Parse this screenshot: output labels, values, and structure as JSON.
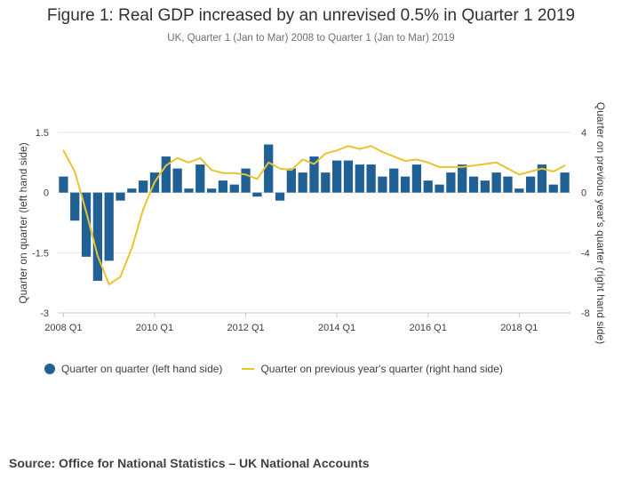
{
  "title": "Figure 1: Real GDP increased by an unrevised 0.5% in Quarter 1 2019",
  "subtitle": "UK, Quarter 1 (Jan to Mar) 2008 to Quarter 1 (Jan to Mar) 2019",
  "source": "Source: Office for National Statistics – UK National Accounts",
  "colors": {
    "bars": "#206095",
    "line": "#e8c42e",
    "grid": "#e5e5e5"
  },
  "chart_data": {
    "type": "bar",
    "title": "Figure 1: Real GDP increased by an unrevised 0.5% in Quarter 1 2019",
    "subtitle": "UK, Quarter 1 (Jan to Mar) 2008 to Quarter 1 (Jan to Mar) 2019",
    "ylabel": "Quarter on quarter (left hand side)",
    "y2label": "Quarter on previous year's quarter (right hand side)",
    "ylim": [
      -3,
      1.5
    ],
    "y2lim": [
      -8,
      4
    ],
    "yticks": [
      1.5,
      0,
      -1.5,
      -3
    ],
    "y2ticks": [
      4,
      0,
      -4,
      -8
    ],
    "yticklabels": [
      "1.5",
      "0",
      "-1.5",
      "-3"
    ],
    "y2ticklabels": [
      "4",
      "0",
      "-4",
      "-8"
    ],
    "xticks": [
      "2008 Q1",
      "2010 Q1",
      "2012 Q1",
      "2014 Q1",
      "2016 Q1",
      "2018 Q1"
    ],
    "xtick_positions": [
      0,
      8,
      16,
      24,
      32,
      40
    ],
    "legend_position": "bottom-left",
    "grid": true,
    "categories": [
      "2008 Q1",
      "2008 Q2",
      "2008 Q3",
      "2008 Q4",
      "2009 Q1",
      "2009 Q2",
      "2009 Q3",
      "2009 Q4",
      "2010 Q1",
      "2010 Q2",
      "2010 Q3",
      "2010 Q4",
      "2011 Q1",
      "2011 Q2",
      "2011 Q3",
      "2011 Q4",
      "2012 Q1",
      "2012 Q2",
      "2012 Q3",
      "2012 Q4",
      "2013 Q1",
      "2013 Q2",
      "2013 Q3",
      "2013 Q4",
      "2014 Q1",
      "2014 Q2",
      "2014 Q3",
      "2014 Q4",
      "2015 Q1",
      "2015 Q2",
      "2015 Q3",
      "2015 Q4",
      "2016 Q1",
      "2016 Q2",
      "2016 Q3",
      "2016 Q4",
      "2017 Q1",
      "2017 Q2",
      "2017 Q3",
      "2017 Q4",
      "2018 Q1",
      "2018 Q2",
      "2018 Q3",
      "2018 Q4",
      "2019 Q1"
    ],
    "series": [
      {
        "name": "Quarter on quarter (left hand side)",
        "type": "bar",
        "axis": "left",
        "values": [
          0.4,
          -0.7,
          -1.6,
          -2.2,
          -1.7,
          -0.2,
          0.1,
          0.3,
          0.5,
          0.9,
          0.6,
          0.1,
          0.7,
          0.1,
          0.3,
          0.2,
          0.6,
          -0.1,
          1.2,
          -0.2,
          0.6,
          0.5,
          0.9,
          0.5,
          0.8,
          0.8,
          0.7,
          0.7,
          0.4,
          0.6,
          0.4,
          0.7,
          0.3,
          0.2,
          0.5,
          0.7,
          0.4,
          0.3,
          0.5,
          0.4,
          0.1,
          0.4,
          0.7,
          0.2,
          0.5
        ]
      },
      {
        "name": "Quarter on previous year's quarter (right hand side)",
        "type": "line",
        "axis": "right",
        "values": [
          2.8,
          1.4,
          -1.3,
          -4.2,
          -6.1,
          -5.6,
          -3.7,
          -1.1,
          0.7,
          1.8,
          2.3,
          2.0,
          2.3,
          1.5,
          1.3,
          1.3,
          1.2,
          0.9,
          2.0,
          1.6,
          1.5,
          2.2,
          1.9,
          2.6,
          2.8,
          3.1,
          2.9,
          3.1,
          2.7,
          2.4,
          2.1,
          2.2,
          2.0,
          1.7,
          1.7,
          1.7,
          1.8,
          1.9,
          2.0,
          1.6,
          1.2,
          1.4,
          1.6,
          1.4,
          1.8
        ]
      }
    ]
  }
}
